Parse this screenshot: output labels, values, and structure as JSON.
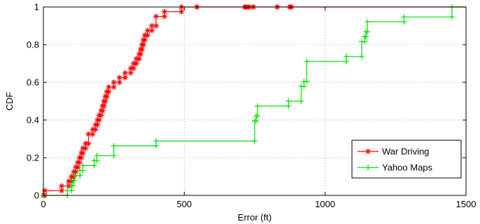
{
  "chart_data": {
    "type": "line",
    "title": "",
    "xlabel": "Error (ft)",
    "ylabel": "CDF",
    "xlim": [
      0,
      1500
    ],
    "ylim": [
      0,
      1
    ],
    "xticks": [
      0,
      500,
      1000,
      1500
    ],
    "yticks": [
      0,
      0.2,
      0.4,
      0.6,
      0.8,
      1
    ],
    "xtick_labels": [
      "0",
      "500",
      "1000",
      "1500"
    ],
    "ytick_labels": [
      "0",
      "0.2",
      "0.4",
      "0.6",
      "0.8",
      "1"
    ],
    "grid": true,
    "step": true,
    "legend_position": "lower-right",
    "series": [
      {
        "name": "War Driving",
        "color": "#ff0000",
        "marker": "asterisk",
        "x": [
          0,
          5,
          65,
          90,
          100,
          108,
          115,
          122,
          128,
          135,
          140,
          150,
          160,
          175,
          185,
          192,
          198,
          205,
          210,
          215,
          220,
          225,
          232,
          250,
          270,
          290,
          310,
          320,
          330,
          340,
          345,
          350,
          355,
          360,
          370,
          385,
          400,
          430,
          490,
          545,
          715,
          720,
          730,
          745,
          830,
          875,
          880
        ],
        "y": [
          0,
          0.025,
          0.05,
          0.075,
          0.1,
          0.125,
          0.15,
          0.175,
          0.2,
          0.225,
          0.25,
          0.275,
          0.325,
          0.35,
          0.375,
          0.4,
          0.425,
          0.45,
          0.475,
          0.5,
          0.525,
          0.55,
          0.575,
          0.6,
          0.625,
          0.65,
          0.675,
          0.7,
          0.725,
          0.75,
          0.775,
          0.8,
          0.825,
          0.85,
          0.875,
          0.9,
          0.95,
          0.975,
          1,
          1,
          1,
          1,
          1,
          1,
          1,
          1,
          1
        ]
      },
      {
        "name": "Yahoo Maps",
        "color": "#00e000",
        "marker": "plus",
        "x": [
          0,
          85,
          100,
          105,
          110,
          130,
          140,
          180,
          190,
          250,
          400,
          750,
          755,
          760,
          870,
          915,
          925,
          935,
          1075,
          1130,
          1140,
          1145,
          1150,
          1280,
          1450
        ],
        "y": [
          0,
          0.026,
          0.053,
          0.079,
          0.105,
          0.132,
          0.158,
          0.184,
          0.211,
          0.263,
          0.289,
          0.395,
          0.421,
          0.474,
          0.5,
          0.579,
          0.605,
          0.711,
          0.737,
          0.816,
          0.842,
          0.868,
          0.921,
          0.947,
          1.0
        ]
      }
    ]
  }
}
